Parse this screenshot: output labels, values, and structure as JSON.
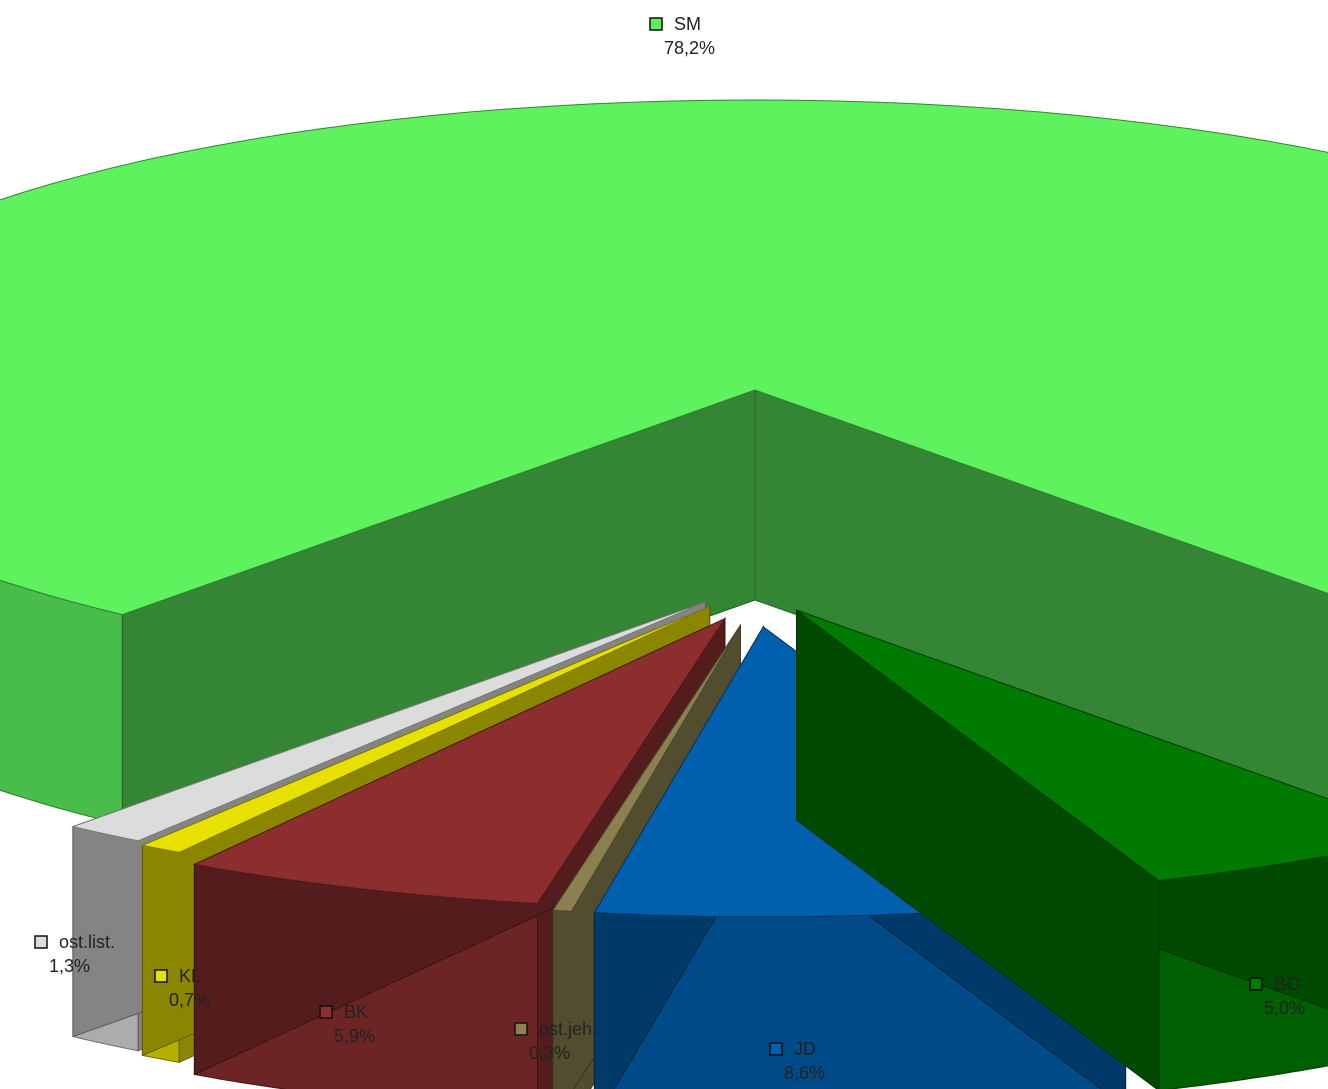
{
  "chart_data": {
    "type": "pie",
    "title": "",
    "categories": [
      "SM",
      "BO",
      "JD",
      "ost.jeh.",
      "BK",
      "KL",
      "ost.list."
    ],
    "values": [
      78.2,
      5.0,
      8.6,
      0.3,
      5.9,
      0.7,
      1.3
    ],
    "value_labels": [
      "78,2%",
      "5,0%",
      "8,6%",
      "0,3%",
      "5,9%",
      "0,7%",
      "1,3%"
    ],
    "colors": [
      "#5ef25e",
      "#007a00",
      "#0060ad",
      "#8a8050",
      "#8c2e2e",
      "#e8e000",
      "#dcdcdc"
    ],
    "style": "3d-exploded",
    "legend": "inline-labels"
  }
}
